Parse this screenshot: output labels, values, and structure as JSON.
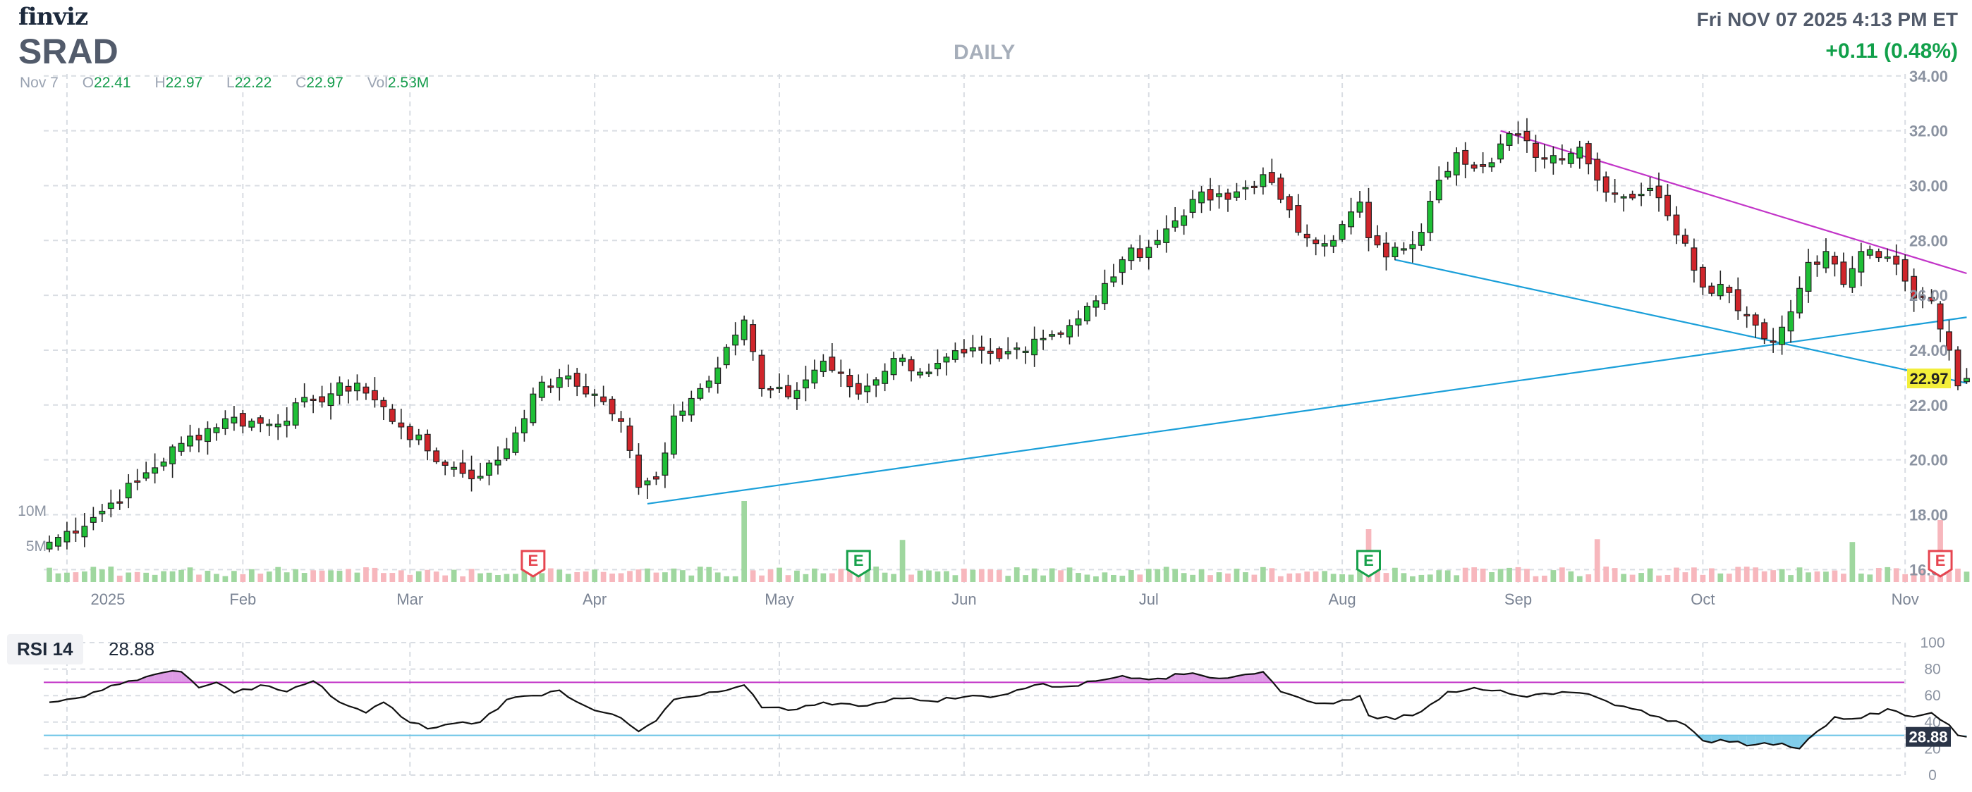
{
  "header": {
    "logo": "finviz",
    "ticker": "SRAD",
    "timeframe": "DAILY",
    "datetime": "Fri NOV 07 2025 4:13 PM ET",
    "change": "+0.11 (0.48%)",
    "ohlc": {
      "date": "Nov 7",
      "o_label": "O",
      "o": "22.41",
      "h_label": "H",
      "h": "22.97",
      "l_label": "L",
      "l": "22.22",
      "c_label": "C",
      "c": "22.97",
      "vol_label": "Vol",
      "vol": "2.53M"
    }
  },
  "colors": {
    "up": "#1fbf36",
    "down": "#d0252b",
    "vol_up": "#9fd79f",
    "vol_down": "#f7b7bd",
    "trend_blue": "#1a9fd9",
    "trend_magenta": "#c234c8",
    "rsi_line": "#111111",
    "rsi_upper": "#d88ae0",
    "rsi_lower": "#6bc4e6",
    "price_tag": "#f2ee3a"
  },
  "rsi": {
    "label": "RSI 14",
    "value": "28.88",
    "tag": "28.88",
    "ticks": [
      "100",
      "80",
      "60",
      "40",
      "20",
      "0"
    ]
  },
  "chart_data": {
    "type": "candlestick",
    "symbol": "SRAD",
    "last_price": "22.97",
    "y_ticks": [
      "34.00",
      "32.00",
      "30.00",
      "28.00",
      "26.00",
      "24.00",
      "22.00",
      "20.00",
      "18.00",
      "16.00"
    ],
    "y_range": [
      15.7,
      34.2
    ],
    "volume_ticks": [
      "10M",
      "5M"
    ],
    "month_labels": [
      {
        "label": "2025",
        "day": 2
      },
      {
        "label": "Feb",
        "day": 22
      },
      {
        "label": "Mar",
        "day": 41
      },
      {
        "label": "Apr",
        "day": 62
      },
      {
        "label": "May",
        "day": 83
      },
      {
        "label": "Jun",
        "day": 104
      },
      {
        "label": "Jul",
        "day": 125
      },
      {
        "label": "Aug",
        "day": 147
      },
      {
        "label": "Sep",
        "day": 167
      },
      {
        "label": "Oct",
        "day": 188
      },
      {
        "label": "Nov",
        "day": 211
      }
    ],
    "earnings": [
      {
        "label": "E",
        "day": 55,
        "color": "#e64550"
      },
      {
        "label": "E",
        "day": 92,
        "color": "#16a04a"
      },
      {
        "label": "E",
        "day": 150,
        "color": "#16a04a"
      },
      {
        "label": "E",
        "day": 215,
        "color": "#e64550"
      }
    ],
    "trendlines": [
      {
        "from": [
          68,
          18.4
        ],
        "to": [
          218,
          25.2
        ],
        "color": "#1a9fd9"
      },
      {
        "from": [
          153,
          27.3
        ],
        "to": [
          218,
          22.8
        ],
        "color": "#1a9fd9"
      },
      {
        "from": [
          165,
          32.0
        ],
        "to": [
          218,
          26.8
        ],
        "color": "#c234c8"
      }
    ],
    "anchors": [
      [
        0,
        17.0
      ],
      [
        5,
        17.9
      ],
      [
        10,
        19.2
      ],
      [
        15,
        20.6
      ],
      [
        20,
        21.5
      ],
      [
        25,
        21.3
      ],
      [
        30,
        22.2
      ],
      [
        35,
        22.8
      ],
      [
        40,
        21.2
      ],
      [
        45,
        19.8
      ],
      [
        49,
        19.4
      ],
      [
        52,
        20.4
      ],
      [
        55,
        22.4
      ],
      [
        58,
        23.0
      ],
      [
        62,
        22.4
      ],
      [
        65,
        21.4
      ],
      [
        67,
        19.0
      ],
      [
        69,
        19.3
      ],
      [
        71,
        21.6
      ],
      [
        74,
        22.6
      ],
      [
        77,
        24.1
      ],
      [
        79,
        25.1
      ],
      [
        81,
        22.6
      ],
      [
        84,
        22.3
      ],
      [
        88,
        23.6
      ],
      [
        92,
        22.4
      ],
      [
        96,
        23.7
      ],
      [
        100,
        23.2
      ],
      [
        104,
        23.9
      ],
      [
        108,
        23.7
      ],
      [
        112,
        24.4
      ],
      [
        116,
        24.9
      ],
      [
        119,
        25.8
      ],
      [
        122,
        27.3
      ],
      [
        126,
        28.0
      ],
      [
        130,
        29.5
      ],
      [
        134,
        29.5
      ],
      [
        138,
        30.4
      ],
      [
        140,
        29.5
      ],
      [
        142,
        28.3
      ],
      [
        146,
        28.0
      ],
      [
        149,
        29.4
      ],
      [
        150,
        28.1
      ],
      [
        152,
        27.4
      ],
      [
        154,
        27.7
      ],
      [
        156,
        28.3
      ],
      [
        158,
        30.2
      ],
      [
        160,
        31.2
      ],
      [
        163,
        30.7
      ],
      [
        166,
        31.9
      ],
      [
        170,
        31.0
      ],
      [
        174,
        31.4
      ],
      [
        176,
        30.2
      ],
      [
        179,
        29.6
      ],
      [
        182,
        29.9
      ],
      [
        184,
        28.9
      ],
      [
        186,
        27.9
      ],
      [
        188,
        26.3
      ],
      [
        190,
        26.4
      ],
      [
        193,
        25.3
      ],
      [
        196,
        24.3
      ],
      [
        198,
        25.4
      ],
      [
        200,
        27.2
      ],
      [
        202,
        27.6
      ],
      [
        204,
        26.4
      ],
      [
        206,
        27.6
      ],
      [
        209,
        27.4
      ],
      [
        212,
        25.9
      ],
      [
        214,
        25.8
      ],
      [
        216,
        24.0
      ],
      [
        217,
        22.7
      ],
      [
        218,
        22.97
      ]
    ],
    "rsi": {
      "overbought": 70,
      "oversold": 30,
      "ylim": [
        0,
        100
      ],
      "anchors": [
        [
          0,
          55
        ],
        [
          3,
          58
        ],
        [
          6,
          64
        ],
        [
          9,
          71
        ],
        [
          12,
          76
        ],
        [
          15,
          78
        ],
        [
          17,
          66
        ],
        [
          19,
          70
        ],
        [
          21,
          62
        ],
        [
          24,
          68
        ],
        [
          27,
          63
        ],
        [
          30,
          71
        ],
        [
          33,
          55
        ],
        [
          36,
          47
        ],
        [
          38,
          55
        ],
        [
          40,
          44
        ],
        [
          43,
          35
        ],
        [
          46,
          39
        ],
        [
          49,
          40
        ],
        [
          52,
          57
        ],
        [
          55,
          60
        ],
        [
          58,
          64
        ],
        [
          61,
          52
        ],
        [
          64,
          46
        ],
        [
          67,
          33
        ],
        [
          69,
          41
        ],
        [
          71,
          57
        ],
        [
          74,
          60
        ],
        [
          77,
          64
        ],
        [
          79,
          68
        ],
        [
          81,
          51
        ],
        [
          84,
          49
        ],
        [
          88,
          55
        ],
        [
          92,
          52
        ],
        [
          96,
          58
        ],
        [
          100,
          56
        ],
        [
          104,
          59
        ],
        [
          108,
          60
        ],
        [
          112,
          68
        ],
        [
          116,
          67
        ],
        [
          119,
          71
        ],
        [
          122,
          75
        ],
        [
          126,
          73
        ],
        [
          130,
          77
        ],
        [
          133,
          73
        ],
        [
          136,
          76
        ],
        [
          138,
          78
        ],
        [
          140,
          63
        ],
        [
          143,
          56
        ],
        [
          146,
          54
        ],
        [
          149,
          60
        ],
        [
          150,
          45
        ],
        [
          153,
          42
        ],
        [
          156,
          48
        ],
        [
          159,
          63
        ],
        [
          162,
          66
        ],
        [
          165,
          64
        ],
        [
          168,
          59
        ],
        [
          171,
          61
        ],
        [
          174,
          62
        ],
        [
          177,
          56
        ],
        [
          180,
          50
        ],
        [
          183,
          44
        ],
        [
          186,
          38
        ],
        [
          188,
          26
        ],
        [
          191,
          25
        ],
        [
          194,
          23
        ],
        [
          197,
          24
        ],
        [
          199,
          20
        ],
        [
          201,
          33
        ],
        [
          203,
          44
        ],
        [
          206,
          43
        ],
        [
          209,
          50
        ],
        [
          212,
          44
        ],
        [
          214,
          47
        ],
        [
          216,
          38
        ],
        [
          217,
          30
        ],
        [
          218,
          28.88
        ]
      ]
    }
  }
}
